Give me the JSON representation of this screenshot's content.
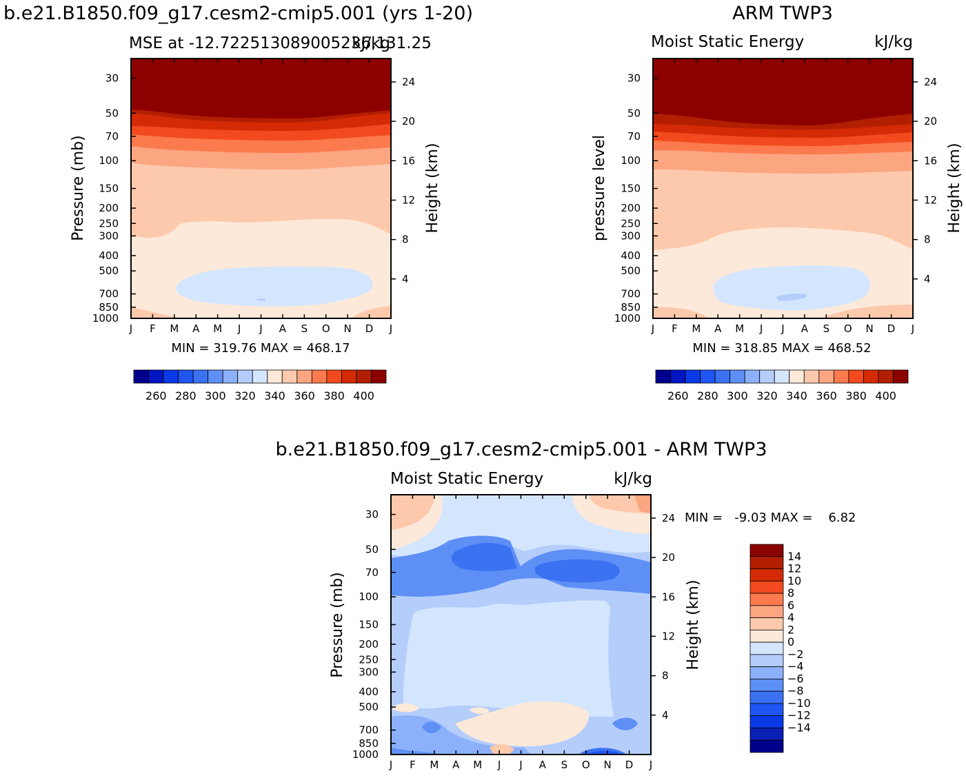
{
  "colors": {
    "palette_15": [
      "#00008c",
      "#0015c4",
      "#0a3ae6",
      "#1f55f2",
      "#3b72f2",
      "#5e8ff5",
      "#8cb0fa",
      "#b4cdfb",
      "#d4e6fe",
      "#fde9d9",
      "#fdc9ad",
      "#fca581",
      "#fb7a4e",
      "#f24a1e",
      "#d42a05",
      "#b21f00",
      "#8c0000"
    ],
    "cb_top": [
      "#00008c",
      "#0015c4",
      "#0a3ae6",
      "#1f55f2",
      "#3b72f2",
      "#5e8ff5",
      "#8cb0fa",
      "#b4cdfb",
      "#d4e6fe",
      "#fde9d9",
      "#fdc9ad",
      "#fca581",
      "#fb7a4e",
      "#f24a1e",
      "#d42a05",
      "#b21f00",
      "#8c0000"
    ],
    "cb_diff": [
      "#00008c",
      "#0a1fb4",
      "#0a3ae6",
      "#1f55f2",
      "#3b72f2",
      "#5e8ff5",
      "#8cb0fa",
      "#b4cdfb",
      "#d4e6fe",
      "#fde9d9",
      "#fdc9ad",
      "#fca581",
      "#fb7a4e",
      "#f24a1e",
      "#d42a05",
      "#b21f00",
      "#8c0000"
    ]
  },
  "chart_data": [
    {
      "type": "heatmap",
      "title": "b.e21.B1850.f09_g17.cesm2-cmip5.001 (yrs 1-20)",
      "left_label": "MSE at -12.722513089005236,131.25",
      "right_label": "kJ/kg",
      "x_tick_labels": [
        "J",
        "F",
        "M",
        "A",
        "M",
        "J",
        "J",
        "A",
        "S",
        "O",
        "N",
        "D",
        "J"
      ],
      "y_left_label": "Pressure (mb)",
      "y_left_ticks": [
        "30",
        "50",
        "70",
        "100",
        "150",
        "200",
        "250",
        "300",
        "400",
        "500",
        "700",
        "850",
        "1000"
      ],
      "y_right_label": "Height (km)",
      "y_right_ticks": [
        "24",
        "20",
        "16",
        "12",
        "8",
        "4"
      ],
      "stats": "MIN = 319.76 MAX = 468.17",
      "colorbar_labels": [
        "260",
        "280",
        "300",
        "320",
        "340",
        "360",
        "380",
        "400"
      ]
    },
    {
      "type": "heatmap",
      "title": "ARM TWP3",
      "left_label": "Moist Static Energy",
      "right_label": "kJ/kg",
      "x_tick_labels": [
        "J",
        "F",
        "M",
        "A",
        "M",
        "J",
        "J",
        "A",
        "S",
        "O",
        "N",
        "D",
        "J"
      ],
      "y_left_label": "pressure level",
      "y_left_ticks": [
        "30",
        "50",
        "70",
        "100",
        "150",
        "200",
        "250",
        "300",
        "400",
        "500",
        "700",
        "850",
        "1000"
      ],
      "y_right_label": "Height (km)",
      "y_right_ticks": [
        "24",
        "20",
        "16",
        "12",
        "8",
        "4"
      ],
      "stats": "MIN = 318.85 MAX = 468.52",
      "colorbar_labels": [
        "260",
        "280",
        "300",
        "320",
        "340",
        "360",
        "380",
        "400"
      ]
    },
    {
      "type": "heatmap",
      "title": "b.e21.B1850.f09_g17.cesm2-cmip5.001 - ARM TWP3",
      "left_label": "Moist Static Energy",
      "right_label": "kJ/kg",
      "x_tick_labels": [
        "J",
        "F",
        "M",
        "A",
        "M",
        "J",
        "J",
        "A",
        "S",
        "O",
        "N",
        "D",
        "J"
      ],
      "y_left_label": "Pressure (mb)",
      "y_left_ticks": [
        "30",
        "50",
        "70",
        "100",
        "150",
        "200",
        "250",
        "300",
        "400",
        "500",
        "700",
        "850",
        "1000"
      ],
      "y_right_label": "Height (km)",
      "y_right_ticks": [
        "24",
        "20",
        "16",
        "12",
        "8",
        "4"
      ],
      "stats": "MIN =   -9.03 MAX =    6.82",
      "colorbar_labels": [
        "14",
        "12",
        "10",
        "8",
        "6",
        "4",
        "2",
        "0",
        "−2",
        "−4",
        "−6",
        "−8",
        "−10",
        "−12",
        "−14"
      ]
    }
  ]
}
